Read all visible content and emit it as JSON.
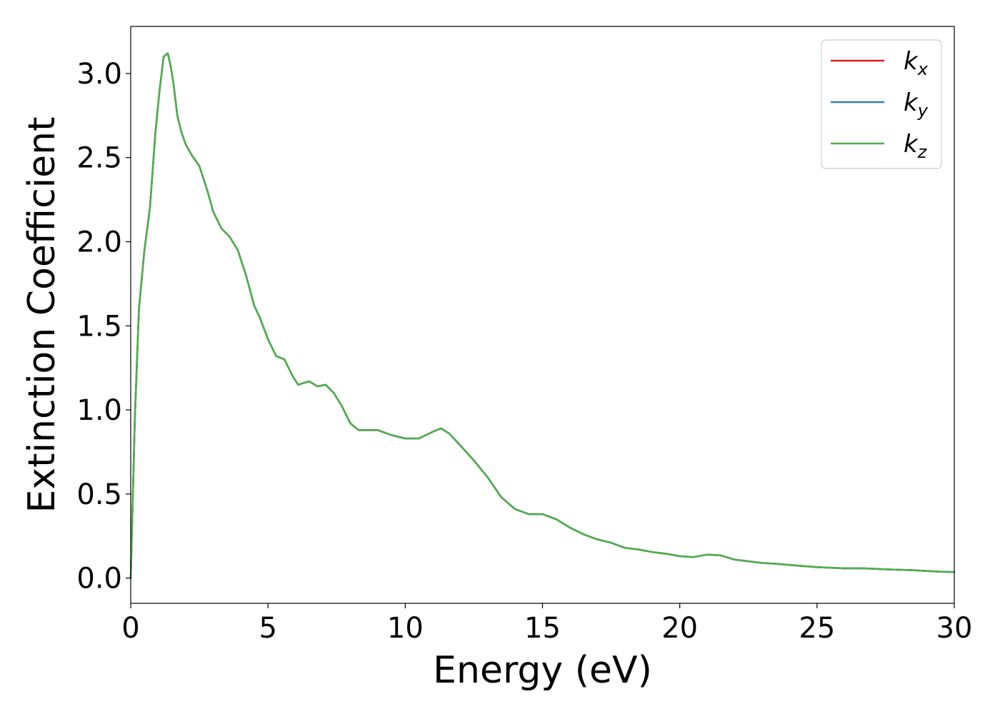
{
  "chart_data": {
    "type": "line",
    "title": "",
    "xlabel": "Energy (eV)",
    "ylabel": "Extinction Coefficient",
    "xlim": [
      0,
      30
    ],
    "ylim": [
      -0.15,
      3.28
    ],
    "xticks": [
      0,
      5,
      10,
      15,
      20,
      25,
      30
    ],
    "xtick_labels": [
      "0",
      "5",
      "10",
      "15",
      "20",
      "25",
      "30"
    ],
    "yticks": [
      0.0,
      0.5,
      1.0,
      1.5,
      2.0,
      2.5,
      3.0
    ],
    "ytick_labels": [
      "0.0",
      "0.5",
      "1.0",
      "1.5",
      "2.0",
      "2.5",
      "3.0"
    ],
    "grid": false,
    "legend_position": "top-right",
    "x": [
      0,
      0.15,
      0.3,
      0.5,
      0.7,
      0.9,
      1.05,
      1.2,
      1.35,
      1.45,
      1.55,
      1.7,
      1.85,
      2.0,
      2.2,
      2.5,
      2.8,
      3.0,
      3.3,
      3.6,
      3.9,
      4.2,
      4.5,
      4.7,
      5.0,
      5.3,
      5.6,
      5.9,
      6.1,
      6.3,
      6.5,
      6.8,
      7.1,
      7.4,
      7.7,
      8.0,
      8.3,
      8.7,
      9.0,
      9.5,
      10.0,
      10.5,
      11.0,
      11.3,
      11.6,
      12.0,
      12.5,
      13.0,
      13.5,
      14.0,
      14.5,
      15.0,
      15.5,
      16.0,
      16.5,
      17.0,
      17.5,
      18.0,
      18.5,
      19.0,
      19.5,
      20.0,
      20.5,
      21.0,
      21.5,
      22.0,
      22.5,
      23.0,
      23.5,
      24.0,
      25.0,
      26.0,
      26.7,
      27.5,
      28.5,
      29.5,
      30.0
    ],
    "series": [
      {
        "name": "k_x",
        "color": "#e41a1c",
        "values": [
          0.0,
          0.95,
          1.6,
          1.95,
          2.2,
          2.65,
          2.9,
          3.1,
          3.12,
          3.05,
          2.95,
          2.75,
          2.65,
          2.58,
          2.52,
          2.45,
          2.3,
          2.18,
          2.08,
          2.03,
          1.95,
          1.8,
          1.62,
          1.55,
          1.42,
          1.32,
          1.3,
          1.2,
          1.15,
          1.16,
          1.17,
          1.14,
          1.15,
          1.1,
          1.02,
          0.92,
          0.88,
          0.88,
          0.88,
          0.85,
          0.83,
          0.83,
          0.87,
          0.89,
          0.86,
          0.79,
          0.7,
          0.6,
          0.48,
          0.41,
          0.38,
          0.38,
          0.35,
          0.3,
          0.26,
          0.23,
          0.21,
          0.18,
          0.17,
          0.155,
          0.145,
          0.13,
          0.125,
          0.14,
          0.135,
          0.11,
          0.1,
          0.09,
          0.085,
          0.078,
          0.065,
          0.058,
          0.058,
          0.052,
          0.047,
          0.038,
          0.036
        ]
      },
      {
        "name": "k_y",
        "color": "#377eb8",
        "values": [
          0.0,
          0.95,
          1.6,
          1.95,
          2.2,
          2.65,
          2.9,
          3.1,
          3.12,
          3.05,
          2.95,
          2.75,
          2.65,
          2.58,
          2.52,
          2.45,
          2.3,
          2.18,
          2.08,
          2.03,
          1.95,
          1.8,
          1.62,
          1.55,
          1.42,
          1.32,
          1.3,
          1.2,
          1.15,
          1.16,
          1.17,
          1.14,
          1.15,
          1.1,
          1.02,
          0.92,
          0.88,
          0.88,
          0.88,
          0.85,
          0.83,
          0.83,
          0.87,
          0.89,
          0.86,
          0.79,
          0.7,
          0.6,
          0.48,
          0.41,
          0.38,
          0.38,
          0.35,
          0.3,
          0.26,
          0.23,
          0.21,
          0.18,
          0.17,
          0.155,
          0.145,
          0.13,
          0.125,
          0.14,
          0.135,
          0.11,
          0.1,
          0.09,
          0.085,
          0.078,
          0.065,
          0.058,
          0.058,
          0.052,
          0.047,
          0.038,
          0.036
        ]
      },
      {
        "name": "k_z",
        "color": "#4daf4a",
        "values": [
          0.0,
          0.95,
          1.6,
          1.95,
          2.2,
          2.65,
          2.9,
          3.1,
          3.12,
          3.05,
          2.95,
          2.75,
          2.65,
          2.58,
          2.52,
          2.45,
          2.3,
          2.18,
          2.08,
          2.03,
          1.95,
          1.8,
          1.62,
          1.55,
          1.42,
          1.32,
          1.3,
          1.2,
          1.15,
          1.16,
          1.17,
          1.14,
          1.15,
          1.1,
          1.02,
          0.92,
          0.88,
          0.88,
          0.88,
          0.85,
          0.83,
          0.83,
          0.87,
          0.89,
          0.86,
          0.79,
          0.7,
          0.6,
          0.48,
          0.41,
          0.38,
          0.38,
          0.35,
          0.3,
          0.26,
          0.23,
          0.21,
          0.18,
          0.17,
          0.155,
          0.145,
          0.13,
          0.125,
          0.14,
          0.135,
          0.11,
          0.1,
          0.09,
          0.085,
          0.078,
          0.065,
          0.058,
          0.058,
          0.052,
          0.047,
          0.038,
          0.036
        ]
      }
    ],
    "legend": [
      {
        "base": "k",
        "sub": "x"
      },
      {
        "base": "k",
        "sub": "y"
      },
      {
        "base": "k",
        "sub": "z"
      }
    ]
  }
}
